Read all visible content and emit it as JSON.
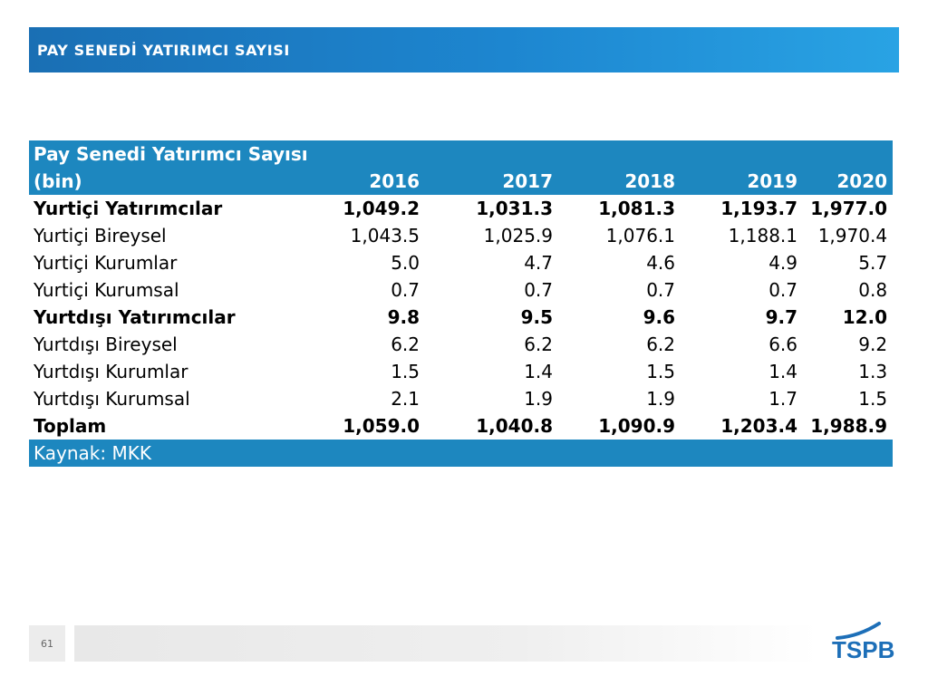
{
  "header": {
    "title": "PAY SENEDİ YATIRIMCI SAYISI"
  },
  "table": {
    "title_line1": "Pay Senedi Yatırımcı Sayısı",
    "title_line2": "(bin)",
    "years": [
      "2016",
      "2017",
      "2018",
      "2019",
      "2020"
    ],
    "rows": [
      {
        "label": "Yurtiçi Yatırımcılar",
        "bold": true,
        "values": [
          "1,049.2",
          "1,031.3",
          "1,081.3",
          "1,193.7",
          "1,977.0"
        ]
      },
      {
        "label": "Yurtiçi Bireysel",
        "bold": false,
        "values": [
          "1,043.5",
          "1,025.9",
          "1,076.1",
          "1,188.1",
          "1,970.4"
        ]
      },
      {
        "label": "Yurtiçi Kurumlar",
        "bold": false,
        "values": [
          "5.0",
          "4.7",
          "4.6",
          "4.9",
          "5.7"
        ]
      },
      {
        "label": "Yurtiçi Kurumsal",
        "bold": false,
        "values": [
          "0.7",
          "0.7",
          "0.7",
          "0.7",
          "0.8"
        ]
      },
      {
        "label": "Yurtdışı Yatırımcılar",
        "bold": true,
        "values": [
          "9.8",
          "9.5",
          "9.6",
          "9.7",
          "12.0"
        ]
      },
      {
        "label": "Yurtdışı Bireysel",
        "bold": false,
        "values": [
          "6.2",
          "6.2",
          "6.2",
          "6.6",
          "9.2"
        ]
      },
      {
        "label": "Yurtdışı Kurumlar",
        "bold": false,
        "values": [
          "1.5",
          "1.4",
          "1.5",
          "1.4",
          "1.3"
        ]
      },
      {
        "label": "Yurtdışı Kurumsal",
        "bold": false,
        "values": [
          "2.1",
          "1.9",
          "1.9",
          "1.7",
          "1.5"
        ]
      },
      {
        "label": "Toplam",
        "bold": true,
        "values": [
          "1,059.0",
          "1,040.8",
          "1,090.9",
          "1,203.4",
          "1,988.9"
        ]
      }
    ],
    "source": "Kaynak: MKK"
  },
  "footer": {
    "page_number": "61",
    "logo_text": "TSPB"
  },
  "colors": {
    "table_header": "#1d87bf",
    "title_bar": "#1d86d0",
    "logo": "#1d6fb8"
  }
}
